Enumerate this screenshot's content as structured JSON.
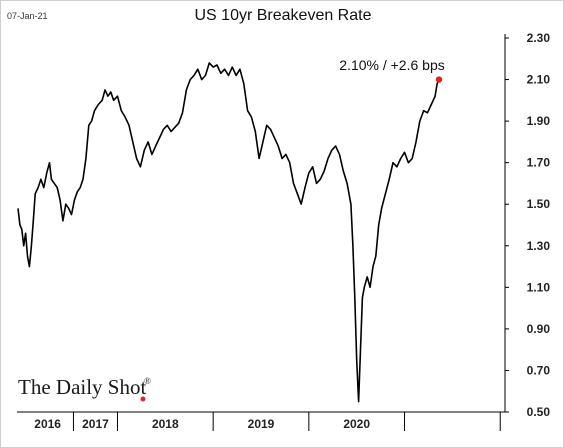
{
  "header": {
    "date_stamp": "07-Jan-21",
    "title": "US 10yr Breakeven Rate"
  },
  "annotation": "2.10%  /  +2.6 bps",
  "logo": {
    "text": "The Daily Shot",
    "mark": "®",
    "dot_color": "#d62828"
  },
  "colors": {
    "line": "#000000",
    "last_point": "#e02020",
    "axis": "#000000"
  },
  "chart_data": {
    "type": "line",
    "title": "US 10yr Breakeven Rate",
    "xlabel": "",
    "ylabel": "",
    "y_axis_side": "right",
    "ylim": [
      0.5,
      2.3
    ],
    "yticks": [
      "0.50",
      "0.70",
      "0.90",
      "1.10",
      "1.30",
      "1.50",
      "1.70",
      "1.90",
      "2.10",
      "2.30"
    ],
    "x_range": [
      2015.95,
      2021.05
    ],
    "x_separators": [
      2016.54,
      2017.0,
      2018.0,
      2019.0,
      2020.0,
      2021.0
    ],
    "x_label_years": [
      {
        "label": "2016",
        "x": 2016.27
      },
      {
        "label": "2017",
        "x": 2016.77
      },
      {
        "label": "2018",
        "x": 2017.5
      },
      {
        "label": "2019",
        "x": 2018.5
      },
      {
        "label": "2020",
        "x": 2019.5
      }
    ],
    "grid": false,
    "series": [
      {
        "values": [
          [
            2015.96,
            1.48
          ],
          [
            2015.98,
            1.4
          ],
          [
            2016.0,
            1.38
          ],
          [
            2016.02,
            1.3
          ],
          [
            2016.04,
            1.36
          ],
          [
            2016.06,
            1.25
          ],
          [
            2016.08,
            1.2
          ],
          [
            2016.1,
            1.3
          ],
          [
            2016.12,
            1.42
          ],
          [
            2016.14,
            1.55
          ],
          [
            2016.17,
            1.58
          ],
          [
            2016.2,
            1.62
          ],
          [
            2016.23,
            1.58
          ],
          [
            2016.26,
            1.65
          ],
          [
            2016.29,
            1.7
          ],
          [
            2016.31,
            1.62
          ],
          [
            2016.34,
            1.6
          ],
          [
            2016.37,
            1.58
          ],
          [
            2016.4,
            1.52
          ],
          [
            2016.43,
            1.42
          ],
          [
            2016.46,
            1.5
          ],
          [
            2016.49,
            1.48
          ],
          [
            2016.52,
            1.45
          ],
          [
            2016.55,
            1.52
          ],
          [
            2016.58,
            1.56
          ],
          [
            2016.61,
            1.58
          ],
          [
            2016.64,
            1.62
          ],
          [
            2016.67,
            1.72
          ],
          [
            2016.7,
            1.88
          ],
          [
            2016.73,
            1.9
          ],
          [
            2016.76,
            1.95
          ],
          [
            2016.8,
            1.98
          ],
          [
            2016.84,
            2.0
          ],
          [
            2016.87,
            2.05
          ],
          [
            2016.9,
            2.02
          ],
          [
            2016.93,
            2.04
          ],
          [
            2016.96,
            2.0
          ],
          [
            2017.0,
            2.02
          ],
          [
            2017.04,
            1.95
          ],
          [
            2017.08,
            1.92
          ],
          [
            2017.12,
            1.88
          ],
          [
            2017.16,
            1.8
          ],
          [
            2017.2,
            1.72
          ],
          [
            2017.24,
            1.68
          ],
          [
            2017.28,
            1.76
          ],
          [
            2017.32,
            1.8
          ],
          [
            2017.36,
            1.74
          ],
          [
            2017.4,
            1.78
          ],
          [
            2017.44,
            1.82
          ],
          [
            2017.48,
            1.86
          ],
          [
            2017.52,
            1.88
          ],
          [
            2017.56,
            1.85
          ],
          [
            2017.6,
            1.87
          ],
          [
            2017.64,
            1.89
          ],
          [
            2017.68,
            1.94
          ],
          [
            2017.72,
            2.05
          ],
          [
            2017.76,
            2.1
          ],
          [
            2017.8,
            2.12
          ],
          [
            2017.84,
            2.15
          ],
          [
            2017.88,
            2.1
          ],
          [
            2017.92,
            2.12
          ],
          [
            2017.96,
            2.18
          ],
          [
            2018.0,
            2.16
          ],
          [
            2018.04,
            2.17
          ],
          [
            2018.08,
            2.13
          ],
          [
            2018.12,
            2.15
          ],
          [
            2018.16,
            2.12
          ],
          [
            2018.2,
            2.16
          ],
          [
            2018.24,
            2.12
          ],
          [
            2018.28,
            2.15
          ],
          [
            2018.32,
            2.08
          ],
          [
            2018.36,
            1.95
          ],
          [
            2018.4,
            1.92
          ],
          [
            2018.44,
            1.85
          ],
          [
            2018.48,
            1.72
          ],
          [
            2018.52,
            1.8
          ],
          [
            2018.56,
            1.88
          ],
          [
            2018.6,
            1.86
          ],
          [
            2018.64,
            1.82
          ],
          [
            2018.68,
            1.78
          ],
          [
            2018.72,
            1.72
          ],
          [
            2018.76,
            1.74
          ],
          [
            2018.8,
            1.7
          ],
          [
            2018.84,
            1.6
          ],
          [
            2018.88,
            1.55
          ],
          [
            2018.92,
            1.5
          ],
          [
            2018.96,
            1.58
          ],
          [
            2019.0,
            1.65
          ],
          [
            2019.04,
            1.68
          ],
          [
            2019.08,
            1.6
          ],
          [
            2019.12,
            1.62
          ],
          [
            2019.16,
            1.66
          ],
          [
            2019.2,
            1.72
          ],
          [
            2019.24,
            1.76
          ],
          [
            2019.28,
            1.78
          ],
          [
            2019.32,
            1.74
          ],
          [
            2019.36,
            1.66
          ],
          [
            2019.4,
            1.6
          ],
          [
            2019.44,
            1.5
          ],
          [
            2019.46,
            1.3
          ],
          [
            2019.48,
            1.05
          ],
          [
            2019.5,
            0.75
          ],
          [
            2019.52,
            0.55
          ],
          [
            2019.54,
            0.8
          ],
          [
            2019.56,
            1.05
          ],
          [
            2019.58,
            1.1
          ],
          [
            2019.61,
            1.15
          ],
          [
            2019.64,
            1.1
          ],
          [
            2019.67,
            1.2
          ],
          [
            2019.7,
            1.25
          ],
          [
            2019.73,
            1.4
          ],
          [
            2019.76,
            1.48
          ],
          [
            2019.8,
            1.55
          ],
          [
            2019.84,
            1.62
          ],
          [
            2019.88,
            1.7
          ],
          [
            2019.92,
            1.68
          ],
          [
            2019.96,
            1.72
          ],
          [
            2020.0,
            1.75
          ],
          [
            2020.04,
            1.7
          ],
          [
            2020.08,
            1.72
          ],
          [
            2020.12,
            1.8
          ],
          [
            2020.16,
            1.9
          ],
          [
            2020.2,
            1.95
          ],
          [
            2020.24,
            1.94
          ],
          [
            2020.28,
            1.98
          ],
          [
            2020.32,
            2.02
          ],
          [
            2020.34,
            2.08
          ],
          [
            2020.36,
            2.1
          ]
        ]
      }
    ],
    "last_value": 2.1
  }
}
